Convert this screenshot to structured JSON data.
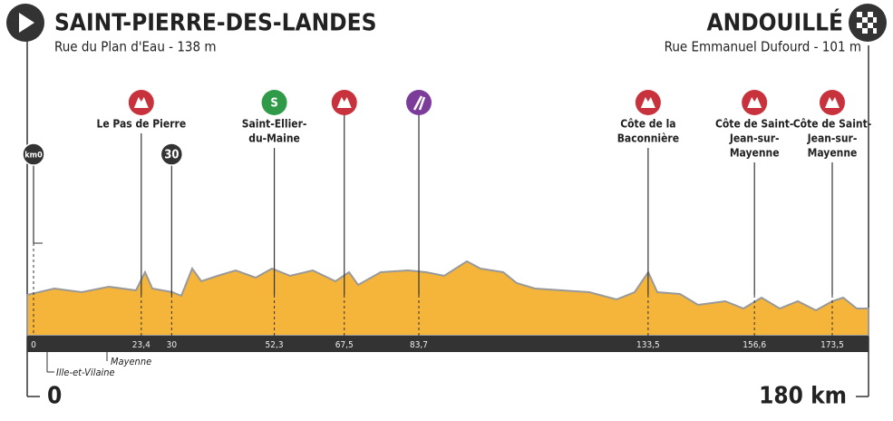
{
  "header": {
    "start": {
      "title": "SAINT-PIERRE-DES-LANDES",
      "subtitle": "Rue du Plan d'Eau - 138 m"
    },
    "finish": {
      "title": "ANDOUILLÉ",
      "subtitle": "Rue Emmanuel Dufourd - 101 m"
    }
  },
  "distance": {
    "start": "0",
    "end": "180 km",
    "total": 180
  },
  "points": [
    {
      "km": {
        "value": 0,
        "label": "0"
      },
      "kind": "marker",
      "icon_text": "km0"
    },
    {
      "km": {
        "value": 23.4,
        "label": "23,4"
      },
      "kind": "climb",
      "label": [
        "Le Pas de Pierre"
      ]
    },
    {
      "km": {
        "value": 30,
        "label": "30"
      },
      "kind": "marker",
      "icon_text": "30"
    },
    {
      "km": {
        "value": 52.3,
        "label": "52,3"
      },
      "kind": "sprint",
      "icon_text": "S",
      "label": [
        "Saint-Ellier-",
        "du-Maine"
      ]
    },
    {
      "km": {
        "value": 67.5,
        "label": "67,5"
      },
      "kind": "climb"
    },
    {
      "km": {
        "value": 83.7,
        "label": "83,7"
      },
      "kind": "feed"
    },
    {
      "km": {
        "value": 133.5,
        "label": "133,5"
      },
      "kind": "climb",
      "label": [
        "Côte de la",
        "Baconnière"
      ]
    },
    {
      "km": {
        "value": 156.6,
        "label": "156,6"
      },
      "kind": "climb",
      "label": [
        "Côte de Saint-",
        "Jean-sur-",
        "Mayenne"
      ]
    },
    {
      "km": {
        "value": 173.5,
        "label": "173,5"
      },
      "kind": "climb",
      "label": [
        "Côte de Saint-",
        "Jean-sur-",
        "Mayenne"
      ]
    }
  ],
  "regions": [
    "Ille-et-Vilaine",
    "Mayenne"
  ]
}
